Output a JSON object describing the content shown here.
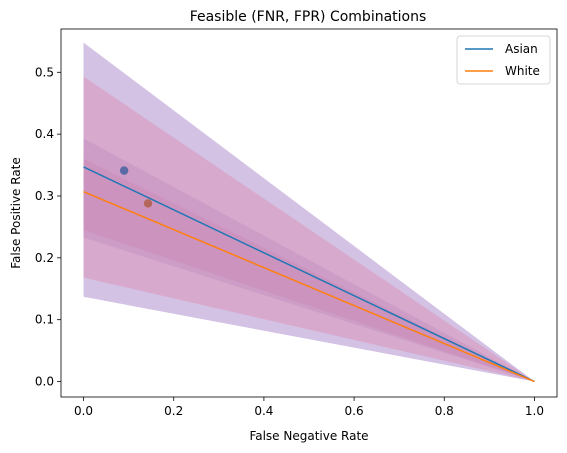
{
  "chart_data": {
    "type": "line",
    "title": "Feasible (FNR, FPR) Combinations",
    "xlabel": "False Negative Rate",
    "ylabel": "False Positive Rate",
    "xlim": [
      -0.05,
      1.05
    ],
    "ylim": [
      -0.025,
      0.57
    ],
    "xticks": [
      0.0,
      0.2,
      0.4,
      0.6,
      0.8,
      1.0
    ],
    "xtick_labels": [
      "0.0",
      "0.2",
      "0.4",
      "0.6",
      "0.8",
      "1.0"
    ],
    "yticks": [
      0.0,
      0.1,
      0.2,
      0.3,
      0.4,
      0.5
    ],
    "ytick_labels": [
      "0.0",
      "0.1",
      "0.2",
      "0.3",
      "0.4",
      "0.5"
    ],
    "grid": false,
    "legend_position": "top-right",
    "series": [
      {
        "name": "Asian",
        "color": "#1f77b4",
        "line": {
          "x": [
            0.0,
            1.0
          ],
          "y": [
            0.347,
            0.0
          ]
        },
        "point": {
          "x": 0.09,
          "y": 0.341,
          "color": "#5a6aa5"
        },
        "bands": [
          {
            "x": [
              0.0,
              1.0
            ],
            "upper": [
              0.548,
              0.0
            ],
            "lower": [
              0.137,
              0.0
            ],
            "color": "#9467bd",
            "alpha": 0.4
          },
          {
            "x": [
              0.0,
              1.0
            ],
            "upper": [
              0.393,
              0.0
            ],
            "lower": [
              0.233,
              0.0
            ],
            "color": "#9467bd",
            "alpha": 0.22
          }
        ]
      },
      {
        "name": "White",
        "color": "#ff7f0e",
        "line": {
          "x": [
            0.0,
            1.0
          ],
          "y": [
            0.307,
            0.0
          ]
        },
        "point": {
          "x": 0.143,
          "y": 0.288,
          "color": "#b5665a"
        },
        "bands": [
          {
            "x": [
              0.0,
              1.0
            ],
            "upper": [
              0.493,
              0.0
            ],
            "lower": [
              0.168,
              0.0
            ],
            "color": "#d97aa0",
            "alpha": 0.35
          },
          {
            "x": [
              0.0,
              1.0
            ],
            "upper": [
              0.36,
              0.0
            ],
            "lower": [
              0.245,
              0.0
            ],
            "color": "#c9729a",
            "alpha": 0.2
          }
        ]
      }
    ]
  }
}
